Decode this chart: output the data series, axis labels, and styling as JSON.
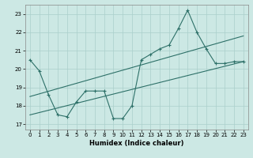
{
  "xlabel": "Humidex (Indice chaleur)",
  "bg_color": "#cce8e4",
  "line_color": "#2d7068",
  "grid_color": "#aacfcb",
  "xlim": [
    -0.5,
    23.5
  ],
  "ylim": [
    16.7,
    23.5
  ],
  "xticks": [
    0,
    1,
    2,
    3,
    4,
    5,
    6,
    7,
    8,
    9,
    10,
    11,
    12,
    13,
    14,
    15,
    16,
    17,
    18,
    19,
    20,
    21,
    22,
    23
  ],
  "yticks": [
    17,
    18,
    19,
    20,
    21,
    22,
    23
  ],
  "line1_x": [
    0,
    1,
    2,
    3,
    4,
    5,
    6,
    7,
    8,
    9,
    10,
    11,
    12,
    13,
    14,
    15,
    16,
    17,
    18,
    19,
    20,
    21,
    22,
    23
  ],
  "line1_y": [
    20.5,
    19.9,
    18.6,
    17.5,
    17.4,
    18.2,
    18.8,
    18.8,
    18.8,
    17.3,
    17.3,
    18.0,
    20.5,
    20.8,
    21.1,
    21.3,
    22.2,
    23.2,
    22.0,
    21.1,
    20.3,
    20.3,
    20.4,
    20.4
  ],
  "trend1_x": [
    0,
    23
  ],
  "trend1_y": [
    18.5,
    21.8
  ],
  "trend2_x": [
    0,
    23
  ],
  "trend2_y": [
    17.5,
    20.4
  ]
}
